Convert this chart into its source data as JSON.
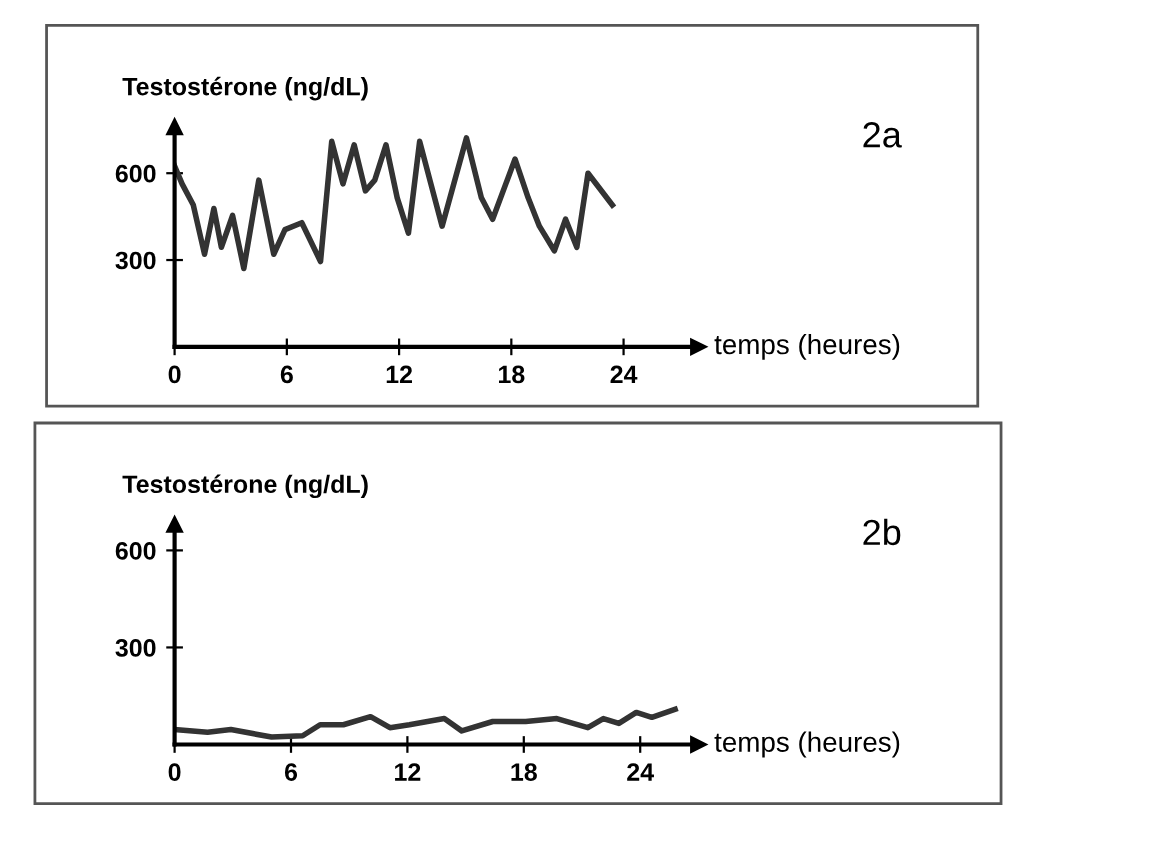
{
  "chart_data": [
    {
      "type": "line",
      "ylabel": "Testostérone (ng/dL)",
      "xlabel": "temps (heures)",
      "annotations": [
        "2a"
      ],
      "xlim": [
        0,
        28
      ],
      "ylim": [
        0,
        760
      ],
      "xticks": [
        0,
        6,
        12,
        18,
        24
      ],
      "yticks": [
        300,
        600
      ],
      "grid": false,
      "legend": false,
      "marker": "none",
      "line_style": "solid",
      "series": [
        {
          "color": "#333333",
          "x": [
            0,
            0.4,
            1,
            1.6,
            2.1,
            2.5,
            3.1,
            3.7,
            4.5,
            5.3,
            5.9,
            6.8,
            7.8,
            8.4,
            9,
            9.6,
            10.2,
            10.7,
            11.3,
            11.9,
            12.5,
            13.1,
            13.7,
            14.3,
            15.6,
            16.4,
            17,
            18.2,
            18.9,
            19.5,
            20.3,
            20.9,
            21.5,
            22.1,
            23.4
          ],
          "values": [
            625,
            563,
            490,
            320,
            478,
            344,
            454,
            271,
            576,
            320,
            405,
            429,
            295,
            710,
            563,
            698,
            539,
            576,
            698,
            515,
            393,
            710,
            563,
            417,
            722,
            515,
            441,
            649,
            515,
            417,
            332,
            441,
            344,
            600,
            490
          ]
        }
      ]
    },
    {
      "type": "line",
      "ylabel": "Testostérone (ng/dL)",
      "xlabel": "temps (heures)",
      "annotations": [
        "2b"
      ],
      "xlim": [
        0,
        27
      ],
      "ylim": [
        0,
        680
      ],
      "xticks": [
        0,
        6,
        12,
        18,
        24
      ],
      "yticks": [
        300,
        600
      ],
      "grid": false,
      "legend": false,
      "marker": "none",
      "line_style": "solid",
      "series": [
        {
          "color": "#333333",
          "x": [
            0,
            1.7,
            2.9,
            5,
            6.6,
            7.5,
            8.7,
            10.1,
            11.1,
            12.1,
            13.9,
            14.8,
            16.4,
            18.1,
            19.7,
            21.3,
            22.1,
            22.9,
            23.8,
            24.6,
            25.8
          ],
          "values": [
            46,
            38,
            46,
            23,
            27,
            61,
            61,
            86,
            52,
            61,
            80,
            42,
            71,
            71,
            80,
            52,
            80,
            65,
            99,
            84,
            109
          ]
        }
      ]
    }
  ]
}
